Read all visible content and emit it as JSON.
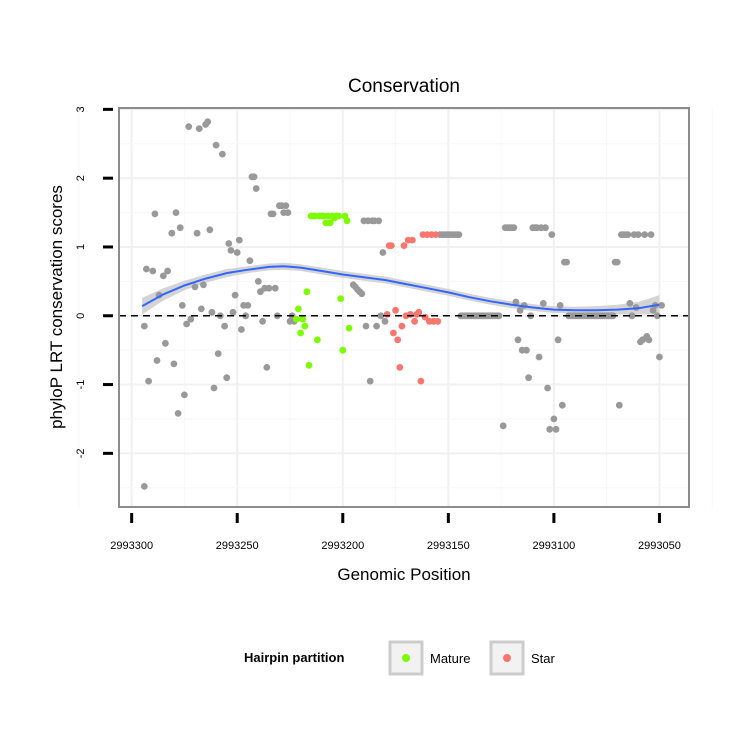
{
  "chart_data": {
    "type": "scatter",
    "title": "Conservation",
    "xlabel": "Genomic Position",
    "ylabel": "phyloP LRT conservation scores",
    "xlim": [
      2993306,
      2993036
    ],
    "x_reversed": true,
    "ylim": [
      -2.78,
      3.02
    ],
    "xticks": [
      2993300,
      2993250,
      2993200,
      2993150,
      2993100,
      2993050
    ],
    "xtick_labels": [
      "2993300",
      "2993250",
      "2993200",
      "2993150",
      "2993100",
      "2993050"
    ],
    "yticks": [
      3,
      2,
      1,
      0,
      -1,
      -2
    ],
    "ytick_labels": [
      "3",
      "2",
      "1",
      "0",
      "-1",
      "-2"
    ],
    "reference_line": {
      "y": 0,
      "style": "dashed"
    },
    "legend": {
      "title": "Hairpin partition",
      "position": "bottom",
      "entries": [
        {
          "label": "Mature",
          "color": "#7cfc00"
        },
        {
          "label": "Star",
          "color": "#f8766d"
        }
      ]
    },
    "colors": {
      "Other": "#999999",
      "Mature": "#7cfc00",
      "Star": "#f8766d",
      "smooth": "#3366ff",
      "ribbon": "#cccccc"
    },
    "series": [
      {
        "name": "Other",
        "points": [
          [
            2993294,
            -2.48
          ],
          [
            2993294,
            -0.15
          ],
          [
            2993293,
            0.68
          ],
          [
            2993292,
            -0.95
          ],
          [
            2993290,
            0.65
          ],
          [
            2993289,
            1.48
          ],
          [
            2993288,
            -0.65
          ],
          [
            2993287,
            0.3
          ],
          [
            2993285,
            0.58
          ],
          [
            2993284,
            -0.4
          ],
          [
            2993283,
            0.65
          ],
          [
            2993281,
            1.2
          ],
          [
            2993280,
            -0.7
          ],
          [
            2993279,
            1.5
          ],
          [
            2993278,
            -1.42
          ],
          [
            2993277,
            1.28
          ],
          [
            2993276,
            0.15
          ],
          [
            2993275,
            -1.15
          ],
          [
            2993274,
            -0.12
          ],
          [
            2993273,
            2.75
          ],
          [
            2993272,
            -0.05
          ],
          [
            2993270,
            0.42
          ],
          [
            2993269,
            1.2
          ],
          [
            2993268,
            2.72
          ],
          [
            2993267,
            0.1
          ],
          [
            2993266,
            0.45
          ],
          [
            2993265,
            2.78
          ],
          [
            2993264,
            2.82
          ],
          [
            2993263,
            1.25
          ],
          [
            2993262,
            0.05
          ],
          [
            2993261,
            -1.05
          ],
          [
            2993260,
            2.48
          ],
          [
            2993259,
            -0.55
          ],
          [
            2993258,
            0.0
          ],
          [
            2993257,
            2.35
          ],
          [
            2993256,
            -0.15
          ],
          [
            2993255,
            -0.9
          ],
          [
            2993254,
            1.05
          ],
          [
            2993253,
            0.95
          ],
          [
            2993252,
            0.05
          ],
          [
            2993251,
            0.3
          ],
          [
            2993250,
            0.92
          ],
          [
            2993249,
            1.1
          ],
          [
            2993248,
            -0.2
          ],
          [
            2993247,
            0.15
          ],
          [
            2993246,
            0.0
          ],
          [
            2993245,
            0.15
          ],
          [
            2993244,
            0.8
          ],
          [
            2993243,
            2.02
          ],
          [
            2993242,
            2.02
          ],
          [
            2993241,
            1.85
          ],
          [
            2993240,
            0.5
          ],
          [
            2993239,
            0.35
          ],
          [
            2993238,
            -0.08
          ],
          [
            2993237,
            0.4
          ],
          [
            2993236,
            -0.75
          ],
          [
            2993235,
            0.4
          ],
          [
            2993234,
            1.48
          ],
          [
            2993233,
            1.48
          ],
          [
            2993232,
            0.4
          ],
          [
            2993231,
            0.0
          ],
          [
            2993230,
            1.6
          ],
          [
            2993229,
            1.6
          ],
          [
            2993228,
            1.5
          ],
          [
            2993227,
            1.6
          ],
          [
            2993226,
            1.5
          ],
          [
            2993225,
            -0.08
          ],
          [
            2993224,
            0.0
          ],
          [
            2993223,
            -0.08
          ],
          [
            2993195,
            0.45
          ],
          [
            2993194,
            0.42
          ],
          [
            2993193,
            0.38
          ],
          [
            2993192,
            0.35
          ],
          [
            2993191,
            0.32
          ],
          [
            2993190,
            1.38
          ],
          [
            2993189,
            -0.15
          ],
          [
            2993188,
            1.38
          ],
          [
            2993187,
            -0.95
          ],
          [
            2993186,
            1.38
          ],
          [
            2993185,
            1.38
          ],
          [
            2993184,
            -0.15
          ],
          [
            2993183,
            1.38
          ],
          [
            2993182,
            0.0
          ],
          [
            2993181,
            0.92
          ],
          [
            2993180,
            -0.08
          ],
          [
            2993154,
            1.18
          ],
          [
            2993153,
            1.18
          ],
          [
            2993152,
            1.18
          ],
          [
            2993151,
            1.18
          ],
          [
            2993150,
            1.18
          ],
          [
            2993149,
            1.18
          ],
          [
            2993148,
            1.18
          ],
          [
            2993147,
            1.18
          ],
          [
            2993146,
            1.18
          ],
          [
            2993145,
            1.18
          ],
          [
            2993144,
            0.0
          ],
          [
            2993143,
            0.0
          ],
          [
            2993142,
            0.0
          ],
          [
            2993141,
            0.0
          ],
          [
            2993140,
            0.0
          ],
          [
            2993139,
            0.0
          ],
          [
            2993138,
            0.0
          ],
          [
            2993137,
            0.0
          ],
          [
            2993136,
            0.0
          ],
          [
            2993135,
            0.0
          ],
          [
            2993134,
            0.0
          ],
          [
            2993133,
            0.0
          ],
          [
            2993132,
            0.0
          ],
          [
            2993131,
            0.0
          ],
          [
            2993130,
            0.0
          ],
          [
            2993129,
            0.0
          ],
          [
            2993128,
            0.0
          ],
          [
            2993127,
            0.0
          ],
          [
            2993126,
            0.0
          ],
          [
            2993124,
            -1.6
          ],
          [
            2993123,
            1.28
          ],
          [
            2993122,
            1.28
          ],
          [
            2993121,
            1.28
          ],
          [
            2993120,
            1.28
          ],
          [
            2993119,
            1.28
          ],
          [
            2993118,
            0.2
          ],
          [
            2993117,
            -0.35
          ],
          [
            2993116,
            0.08
          ],
          [
            2993115,
            -0.5
          ],
          [
            2993114,
            0.15
          ],
          [
            2993113,
            -0.5
          ],
          [
            2993112,
            -0.9
          ],
          [
            2993111,
            0.0
          ],
          [
            2993110,
            1.28
          ],
          [
            2993109,
            1.28
          ],
          [
            2993108,
            1.28
          ],
          [
            2993107,
            -0.6
          ],
          [
            2993106,
            1.28
          ],
          [
            2993105,
            0.18
          ],
          [
            2993104,
            1.28
          ],
          [
            2993103,
            -1.05
          ],
          [
            2993102,
            -1.65
          ],
          [
            2993101,
            1.18
          ],
          [
            2993100,
            -1.5
          ],
          [
            2993099,
            -1.65
          ],
          [
            2993098,
            -0.35
          ],
          [
            2993097,
            0.15
          ],
          [
            2993096,
            -1.3
          ],
          [
            2993095,
            0.78
          ],
          [
            2993094,
            0.78
          ],
          [
            2993093,
            0.0
          ],
          [
            2993092,
            0.0
          ],
          [
            2993091,
            0.0
          ],
          [
            2993090,
            0.0
          ],
          [
            2993089,
            0.0
          ],
          [
            2993088,
            0.0
          ],
          [
            2993087,
            0.0
          ],
          [
            2993086,
            0.0
          ],
          [
            2993085,
            0.0
          ],
          [
            2993084,
            0.0
          ],
          [
            2993083,
            0.0
          ],
          [
            2993082,
            0.0
          ],
          [
            2993081,
            0.0
          ],
          [
            2993080,
            0.0
          ],
          [
            2993079,
            0.0
          ],
          [
            2993078,
            0.0
          ],
          [
            2993077,
            0.0
          ],
          [
            2993076,
            0.0
          ],
          [
            2993075,
            0.0
          ],
          [
            2993074,
            0.0
          ],
          [
            2993073,
            0.0
          ],
          [
            2993072,
            0.0
          ],
          [
            2993071,
            0.78
          ],
          [
            2993070,
            0.78
          ],
          [
            2993069,
            -1.3
          ],
          [
            2993068,
            1.18
          ],
          [
            2993067,
            1.18
          ],
          [
            2993066,
            1.18
          ],
          [
            2993065,
            1.18
          ],
          [
            2993064,
            0.18
          ],
          [
            2993063,
            0.0
          ],
          [
            2993062,
            1.18
          ],
          [
            2993061,
            0.12
          ],
          [
            2993060,
            1.18
          ],
          [
            2993059,
            -0.38
          ],
          [
            2993058,
            -0.35
          ],
          [
            2993057,
            1.18
          ],
          [
            2993056,
            -0.3
          ],
          [
            2993055,
            -0.35
          ],
          [
            2993054,
            1.18
          ],
          [
            2993053,
            0.08
          ],
          [
            2993052,
            0.15
          ],
          [
            2993051,
            0.0
          ],
          [
            2993050,
            -0.6
          ],
          [
            2993049,
            0.15
          ]
        ]
      },
      {
        "name": "Mature",
        "points": [
          [
            2993222,
            -0.05
          ],
          [
            2993221,
            0.1
          ],
          [
            2993220,
            -0.25
          ],
          [
            2993219,
            -0.05
          ],
          [
            2993218,
            -0.15
          ],
          [
            2993217,
            0.35
          ],
          [
            2993216,
            -0.72
          ],
          [
            2993215,
            1.45
          ],
          [
            2993214,
            1.45
          ],
          [
            2993213,
            1.45
          ],
          [
            2993212,
            -0.35
          ],
          [
            2993211,
            1.45
          ],
          [
            2993210,
            1.45
          ],
          [
            2993209,
            1.45
          ],
          [
            2993208,
            1.35
          ],
          [
            2993207,
            1.45
          ],
          [
            2993206,
            1.35
          ],
          [
            2993205,
            1.45
          ],
          [
            2993204,
            1.42
          ],
          [
            2993203,
            1.45
          ],
          [
            2993202,
            1.45
          ],
          [
            2993201,
            0.25
          ],
          [
            2993200,
            -0.5
          ],
          [
            2993199,
            1.45
          ],
          [
            2993198,
            1.38
          ],
          [
            2993197,
            -0.18
          ]
        ]
      },
      {
        "name": "Star",
        "points": [
          [
            2993179,
            0.02
          ],
          [
            2993178,
            1.02
          ],
          [
            2993177,
            1.02
          ],
          [
            2993176,
            -0.25
          ],
          [
            2993175,
            0.08
          ],
          [
            2993174,
            -0.35
          ],
          [
            2993173,
            -0.75
          ],
          [
            2993172,
            -0.15
          ],
          [
            2993171,
            1.02
          ],
          [
            2993170,
            0.0
          ],
          [
            2993169,
            1.1
          ],
          [
            2993168,
            0.02
          ],
          [
            2993167,
            1.1
          ],
          [
            2993166,
            -0.08
          ],
          [
            2993165,
            0.02
          ],
          [
            2993164,
            0.05
          ],
          [
            2993163,
            -0.95
          ],
          [
            2993162,
            1.18
          ],
          [
            2993161,
            -0.02
          ],
          [
            2993160,
            1.18
          ],
          [
            2993159,
            -0.08
          ],
          [
            2993158,
            1.18
          ],
          [
            2993157,
            -0.08
          ],
          [
            2993156,
            1.18
          ],
          [
            2993155,
            -0.08
          ]
        ]
      }
    ],
    "smooth_line": {
      "x": [
        2993295,
        2993285,
        2993275,
        2993265,
        2993255,
        2993245,
        2993235,
        2993228,
        2993220,
        2993210,
        2993200,
        2993190,
        2993180,
        2993170,
        2993160,
        2993150,
        2993140,
        2993130,
        2993120,
        2993110,
        2993100,
        2993090,
        2993080,
        2993070,
        2993060,
        2993050
      ],
      "y": [
        0.14,
        0.31,
        0.44,
        0.54,
        0.62,
        0.67,
        0.71,
        0.72,
        0.7,
        0.65,
        0.6,
        0.56,
        0.52,
        0.46,
        0.4,
        0.34,
        0.27,
        0.21,
        0.16,
        0.12,
        0.09,
        0.08,
        0.08,
        0.09,
        0.11,
        0.16
      ],
      "ci_half_width": [
        0.12,
        0.09,
        0.07,
        0.06,
        0.06,
        0.05,
        0.05,
        0.05,
        0.05,
        0.05,
        0.05,
        0.05,
        0.05,
        0.05,
        0.05,
        0.05,
        0.05,
        0.05,
        0.05,
        0.05,
        0.05,
        0.05,
        0.06,
        0.07,
        0.09,
        0.14
      ]
    }
  }
}
